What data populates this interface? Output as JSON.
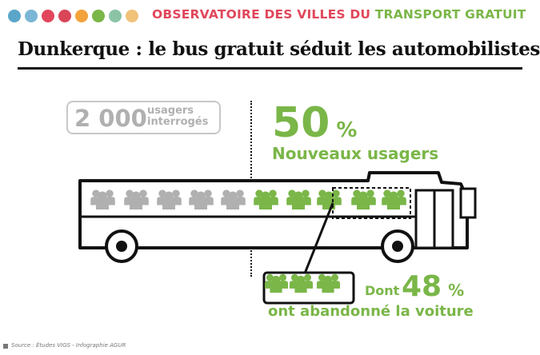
{
  "header": {
    "title_part1": "OBSERVATOIRE DES VILLES DU ",
    "title_part2": "TRANSPORT GRATUIT",
    "dot_colors": [
      "#5aa6c9",
      "#7ab6d6",
      "#e0475b",
      "#d94658",
      "#f2a33b",
      "#7ab648",
      "#8bc3a6",
      "#f0c27a"
    ]
  },
  "headline": "Dunkerque : le bus gratuit séduit les automobilistes",
  "respondents": {
    "number": "2 000",
    "label_line1": "usagers",
    "label_line2": "interrogés"
  },
  "new_users": {
    "percent": "50",
    "percent_sign": "%",
    "label": "Nouveaux usagers"
  },
  "former_drivers": {
    "prefix": "Dont",
    "percent": "48",
    "percent_sign": "%",
    "label": "ont abandonné la voiture"
  },
  "source": "Source : Études VIGS - Infographie AGUR",
  "colors": {
    "green": "#7ab648",
    "gray": "#b0b0b0",
    "red": "#e0475b",
    "dark": "#111111"
  },
  "icons": {
    "person_group": "people-icon",
    "bus": "bus-icon"
  }
}
